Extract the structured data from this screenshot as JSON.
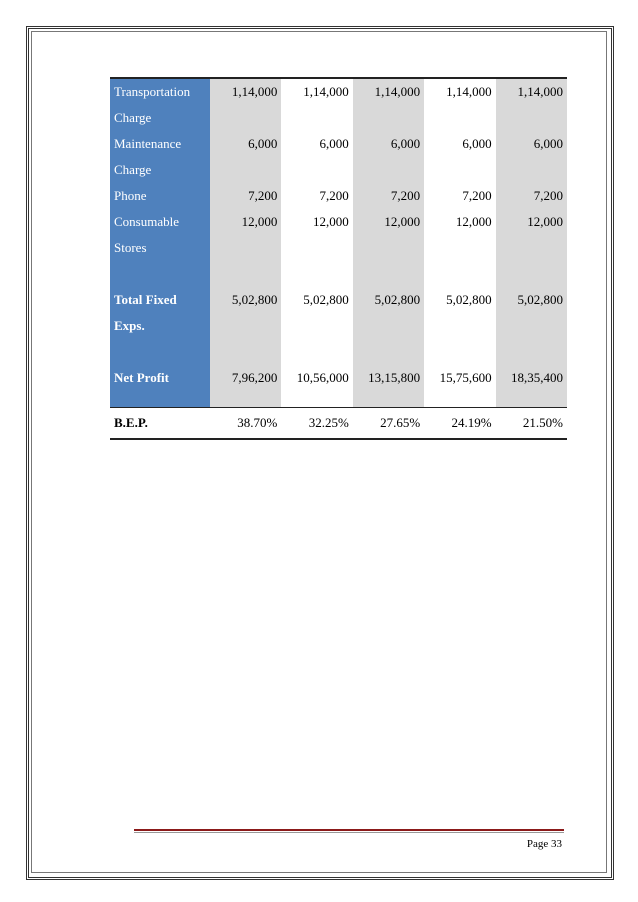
{
  "table": {
    "rows": [
      [
        "Transportation Charge",
        "1,14,000",
        "1,14,000",
        "1,14,000",
        "1,14,000",
        "1,14,000"
      ],
      [
        "Maintenance Charge",
        "6,000",
        "6,000",
        "6,000",
        "6,000",
        "6,000"
      ],
      [
        "Phone",
        "7,200",
        "7,200",
        "7,200",
        "7,200",
        "7,200"
      ],
      [
        "Consumable Stores",
        "12,000",
        "12,000",
        "12,000",
        "12,000",
        "12,000"
      ],
      [
        "Total Fixed Exps.",
        "5,02,800",
        "5,02,800",
        "5,02,800",
        "5,02,800",
        "5,02,800"
      ],
      [
        "Net Profit",
        "7,96,200",
        "10,56,000",
        "13,15,800",
        "15,75,600",
        "18,35,400"
      ]
    ],
    "bep": [
      "B.E.P.",
      "38.70%",
      "32.25%",
      "27.65%",
      "24.19%",
      "21.50%"
    ]
  },
  "footer": {
    "page": "Page 33"
  }
}
